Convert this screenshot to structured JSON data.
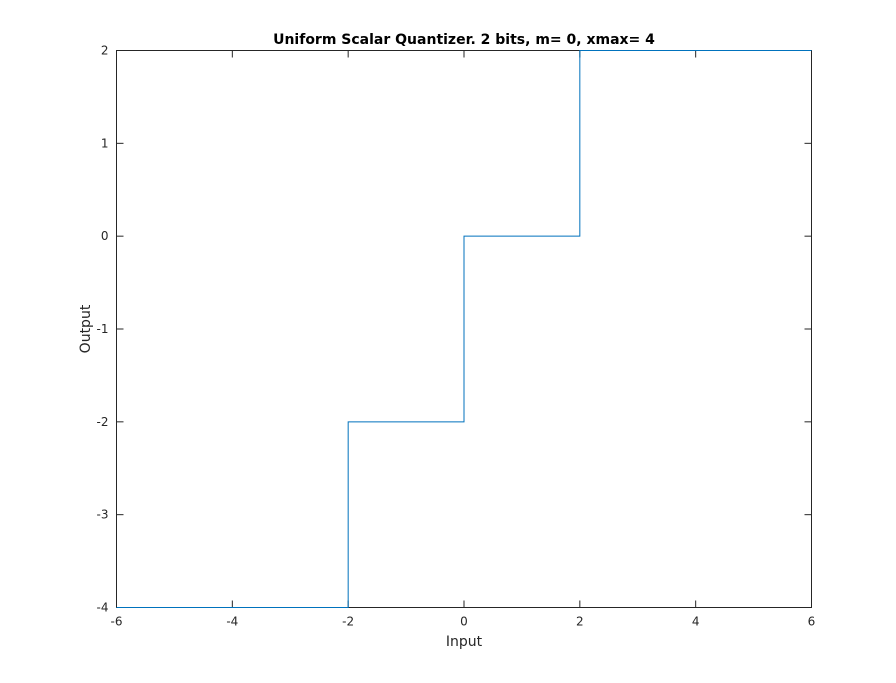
{
  "chart_data": {
    "type": "line",
    "title": "Uniform Scalar Quantizer. 2 bits, m= 0, xmax= 4",
    "xlabel": "Input",
    "ylabel": "Output",
    "xlim": [
      -6,
      6
    ],
    "ylim": [
      -4,
      2
    ],
    "xticks": [
      -6,
      -4,
      -2,
      0,
      2,
      4,
      6
    ],
    "yticks": [
      -4,
      -3,
      -2,
      -1,
      0,
      1,
      2
    ],
    "grid": false,
    "line_color": "#0072BD",
    "series": [
      {
        "x": [
          -6,
          -2,
          -2,
          0,
          0,
          2,
          2,
          6
        ],
        "y": [
          -4,
          -4,
          -2,
          -2,
          0,
          0,
          2,
          2
        ]
      }
    ]
  }
}
